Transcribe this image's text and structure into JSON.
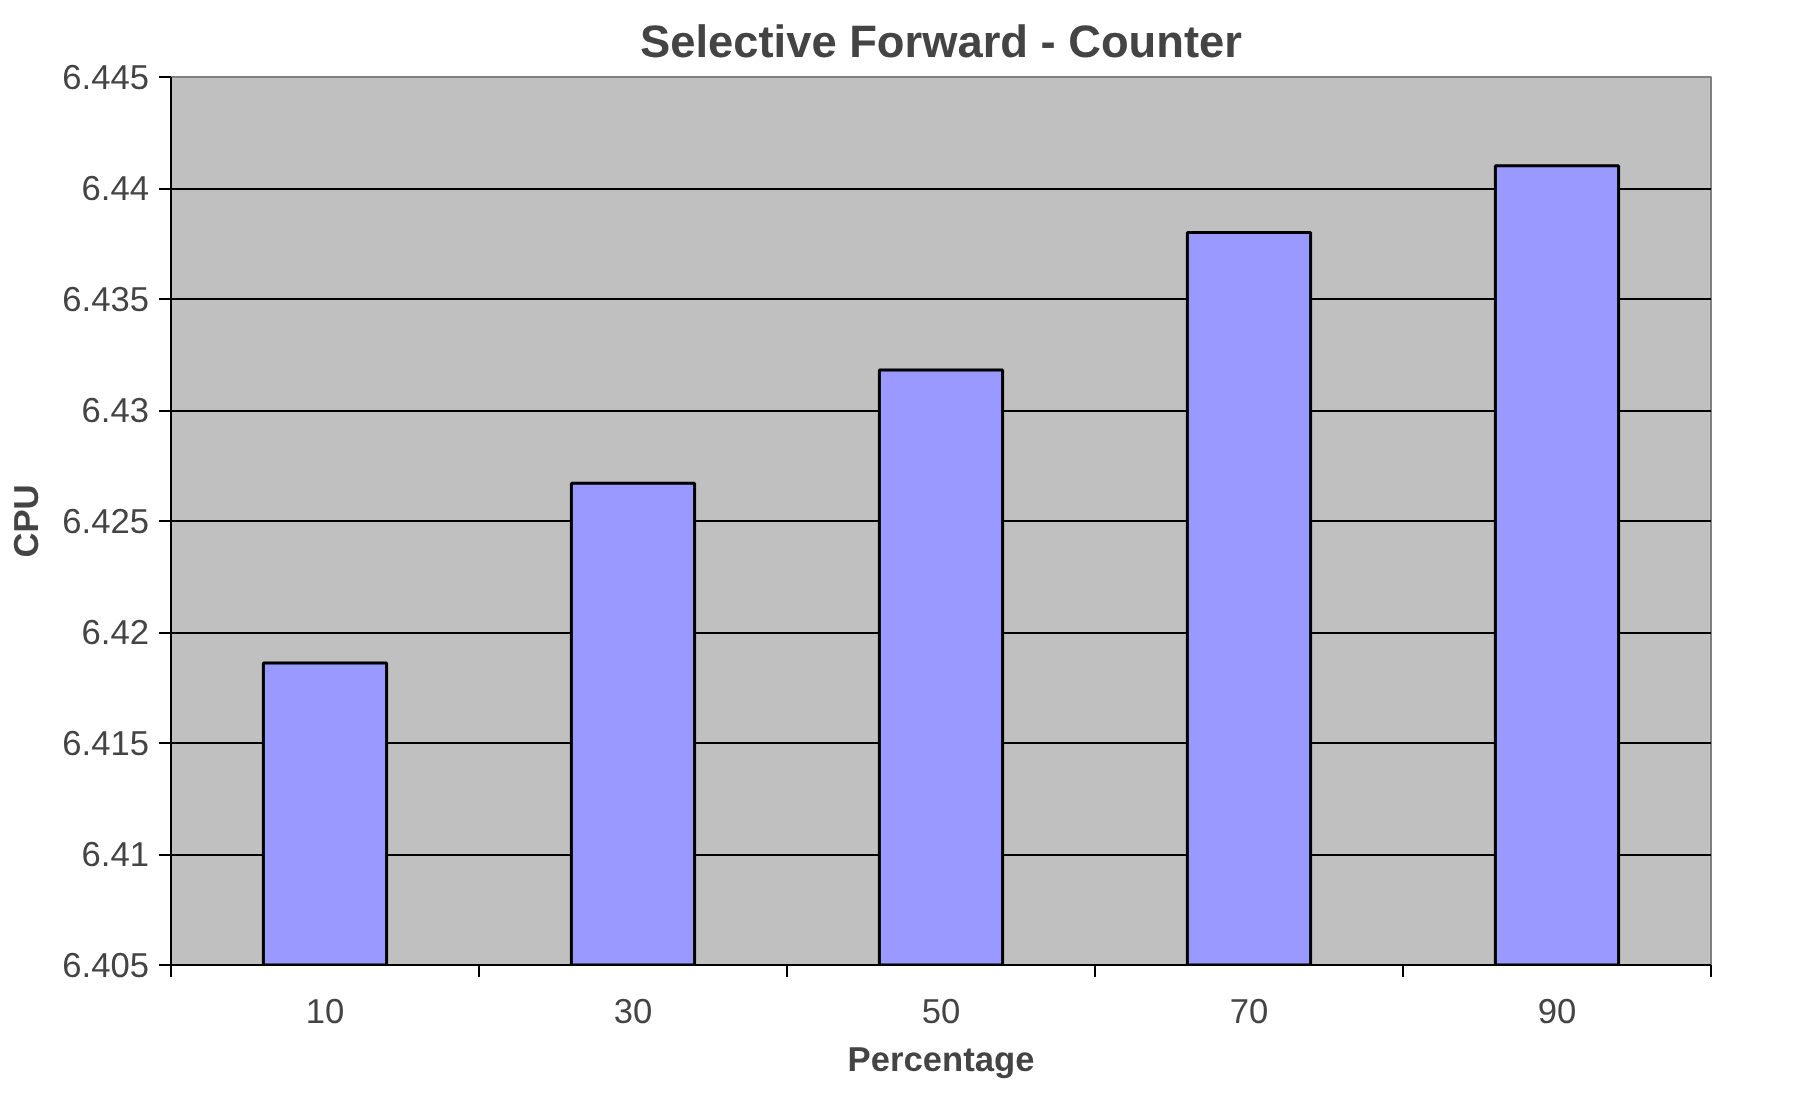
{
  "chart_data": {
    "type": "bar",
    "title": "Selective Forward - Counter",
    "xlabel": "Percentage",
    "ylabel": "CPU",
    "categories": [
      "10",
      "30",
      "50",
      "70",
      "90"
    ],
    "series": [
      {
        "color": "#9999ff",
        "values": [
          6.4186,
          6.4267,
          6.4318,
          6.438,
          6.441
        ]
      }
    ],
    "ylim": [
      6.405,
      6.445
    ],
    "yticks": [
      6.405,
      6.41,
      6.415,
      6.42,
      6.425,
      6.43,
      6.435,
      6.44,
      6.445
    ],
    "grid": "y"
  }
}
